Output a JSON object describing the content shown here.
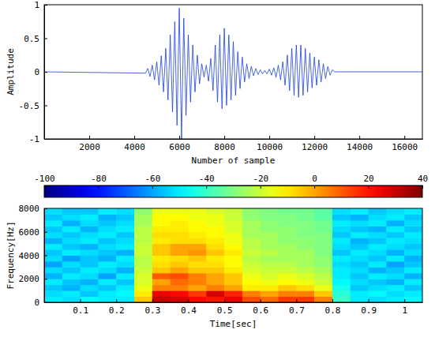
{
  "chart_data": [
    {
      "type": "line",
      "xlabel": "Number of sample",
      "ylabel": "Amplitude",
      "xlim": [
        0,
        16800
      ],
      "ylim": [
        -1,
        1
      ],
      "xticks": [
        2000,
        4000,
        6000,
        8000,
        10000,
        12000,
        14000,
        16000
      ],
      "yticks": [
        -1,
        -0.5,
        0,
        0.5,
        1
      ],
      "color": "#1a40d8",
      "x": [
        0,
        4500,
        4600,
        4700,
        4800,
        4900,
        5000,
        5100,
        5200,
        5300,
        5400,
        5500,
        5600,
        5700,
        5800,
        5900,
        6000,
        6100,
        6200,
        6300,
        6400,
        6500,
        6600,
        6700,
        6800,
        6900,
        7000,
        7100,
        7200,
        7300,
        7400,
        7500,
        7600,
        7700,
        7800,
        7900,
        8000,
        8100,
        8200,
        8300,
        8400,
        8500,
        8600,
        8700,
        8800,
        8900,
        9000,
        9100,
        9200,
        9300,
        9400,
        9500,
        9600,
        9700,
        9800,
        9900,
        10000,
        10100,
        10200,
        10300,
        10400,
        10500,
        10600,
        10700,
        10800,
        10900,
        11000,
        11100,
        11200,
        11300,
        11400,
        11500,
        11600,
        11700,
        11800,
        11900,
        12000,
        12100,
        12200,
        12300,
        12400,
        12500,
        12600,
        12700,
        12800,
        12900,
        16800
      ],
      "values": [
        0,
        -0.02,
        0.05,
        -0.07,
        0.1,
        -0.12,
        0.15,
        -0.2,
        0.24,
        -0.3,
        0.35,
        -0.42,
        0.55,
        -0.6,
        0.75,
        -0.8,
        0.95,
        -1.0,
        0.8,
        -0.65,
        0.55,
        -0.45,
        0.4,
        -0.3,
        0.25,
        -0.18,
        0.12,
        -0.08,
        0.1,
        -0.14,
        0.2,
        -0.28,
        0.4,
        -0.45,
        0.55,
        -0.55,
        0.65,
        -0.5,
        0.55,
        -0.42,
        0.45,
        -0.35,
        0.3,
        -0.25,
        0.22,
        -0.15,
        0.12,
        -0.1,
        0.08,
        -0.06,
        0.05,
        -0.04,
        0.03,
        -0.03,
        0.02,
        -0.03,
        0.04,
        -0.05,
        0.06,
        -0.08,
        0.1,
        -0.12,
        0.15,
        -0.2,
        0.25,
        -0.28,
        0.35,
        -0.35,
        0.4,
        -0.38,
        0.4,
        -0.35,
        0.35,
        -0.3,
        0.28,
        -0.24,
        0.22,
        -0.2,
        0.18,
        -0.15,
        0.12,
        -0.1,
        0.08,
        -0.05,
        0.03,
        0.0,
        0
      ]
    },
    {
      "type": "heatmap",
      "xlabel": "Time[sec]",
      "ylabel": "Frequency[Hz]",
      "xlim": [
        0,
        1.05
      ],
      "ylim": [
        0,
        8000
      ],
      "xticks": [
        0.1,
        0.2,
        0.3,
        0.4,
        0.5,
        0.6,
        0.7,
        0.8,
        0.9,
        1
      ],
      "yticks": [
        0,
        2000,
        4000,
        6000,
        8000
      ],
      "zlim": [
        -100,
        40
      ],
      "zticks": [
        -100,
        -80,
        -60,
        -40,
        -20,
        0,
        20,
        40
      ],
      "x_bins": [
        0,
        0.05,
        0.1,
        0.15,
        0.2,
        0.25,
        0.3,
        0.35,
        0.4,
        0.45,
        0.5,
        0.55,
        0.6,
        0.65,
        0.7,
        0.75,
        0.8,
        0.85,
        0.9,
        0.95,
        1,
        1.05
      ],
      "y_bins": [
        0,
        500,
        1000,
        1500,
        2000,
        2500,
        3000,
        3500,
        4000,
        4500,
        5000,
        5500,
        6000,
        6500,
        7000,
        7500,
        8000
      ],
      "values": [
        [
          -50,
          -52,
          -48,
          -50,
          -50,
          -5,
          30,
          28,
          22,
          20,
          25,
          12,
          8,
          15,
          15,
          5,
          -40,
          -50,
          -52,
          -50,
          -48
        ],
        [
          -52,
          -50,
          -55,
          -50,
          -48,
          -10,
          25,
          22,
          15,
          28,
          18,
          5,
          0,
          5,
          5,
          -5,
          -42,
          -50,
          -48,
          -52,
          -50
        ],
        [
          -55,
          -58,
          -52,
          -55,
          -50,
          -15,
          5,
          5,
          0,
          5,
          0,
          -10,
          -10,
          -5,
          -8,
          -15,
          -45,
          -55,
          -52,
          -50,
          -55
        ],
        [
          -50,
          -55,
          -58,
          -50,
          -55,
          -18,
          0,
          8,
          5,
          0,
          -5,
          -12,
          -15,
          -12,
          -15,
          -20,
          -48,
          -52,
          -55,
          -58,
          -50
        ],
        [
          -58,
          -50,
          -52,
          -60,
          -50,
          -18,
          10,
          12,
          5,
          0,
          -5,
          -15,
          -18,
          -15,
          -18,
          -22,
          -50,
          -55,
          -50,
          -52,
          -58
        ],
        [
          -52,
          -55,
          -50,
          -52,
          -58,
          -20,
          -5,
          0,
          -5,
          -5,
          -10,
          -18,
          -20,
          -20,
          -22,
          -25,
          -50,
          -52,
          -58,
          -55,
          -50
        ],
        [
          -60,
          -52,
          -55,
          -50,
          -52,
          -22,
          -8,
          -5,
          -8,
          -8,
          -12,
          -20,
          -22,
          -22,
          -25,
          -28,
          -52,
          -55,
          -50,
          -60,
          -55
        ],
        [
          -52,
          -60,
          -55,
          -58,
          -50,
          -22,
          -10,
          -8,
          -5,
          -10,
          -12,
          -22,
          -25,
          -25,
          -25,
          -28,
          -50,
          -52,
          -55,
          -50,
          -58
        ],
        [
          -55,
          -50,
          -52,
          -55,
          -58,
          -20,
          -5,
          0,
          2,
          -5,
          -10,
          -20,
          -22,
          -25,
          -25,
          -30,
          -55,
          -50,
          -52,
          -58,
          -52
        ],
        [
          -50,
          -55,
          -58,
          -52,
          -50,
          -20,
          -5,
          0,
          0,
          -8,
          -12,
          -22,
          -25,
          -25,
          -28,
          -30,
          -52,
          -55,
          -50,
          -52,
          -55
        ],
        [
          -58,
          -52,
          -50,
          -55,
          -52,
          -22,
          -10,
          -8,
          -8,
          -10,
          -15,
          -22,
          -25,
          -28,
          -28,
          -30,
          -50,
          -58,
          -55,
          -50,
          -52
        ],
        [
          -52,
          -55,
          -52,
          -50,
          -55,
          -22,
          -8,
          -8,
          -10,
          -12,
          -15,
          -25,
          -25,
          -28,
          -30,
          -30,
          -55,
          -50,
          -52,
          -55,
          -50
        ],
        [
          -55,
          -50,
          -58,
          -52,
          -50,
          -22,
          -10,
          -10,
          -12,
          -12,
          -18,
          -25,
          -28,
          -28,
          -30,
          -32,
          -52,
          -55,
          -58,
          -50,
          -55
        ],
        [
          -50,
          -58,
          -52,
          -55,
          -52,
          -25,
          -12,
          -10,
          -12,
          -15,
          -18,
          -25,
          -28,
          -30,
          -30,
          -32,
          -50,
          -52,
          -50,
          -58,
          -52
        ],
        [
          -55,
          -52,
          -50,
          -58,
          -55,
          -25,
          -12,
          -12,
          -15,
          -15,
          -20,
          -28,
          -30,
          -30,
          -32,
          -35,
          -55,
          -58,
          -52,
          -50,
          -55
        ],
        [
          -52,
          -55,
          -55,
          -50,
          -52,
          -28,
          -15,
          -15,
          -15,
          -18,
          -20,
          -28,
          -30,
          -32,
          -32,
          -35,
          -52,
          -50,
          -55,
          -52,
          -50
        ]
      ]
    }
  ]
}
